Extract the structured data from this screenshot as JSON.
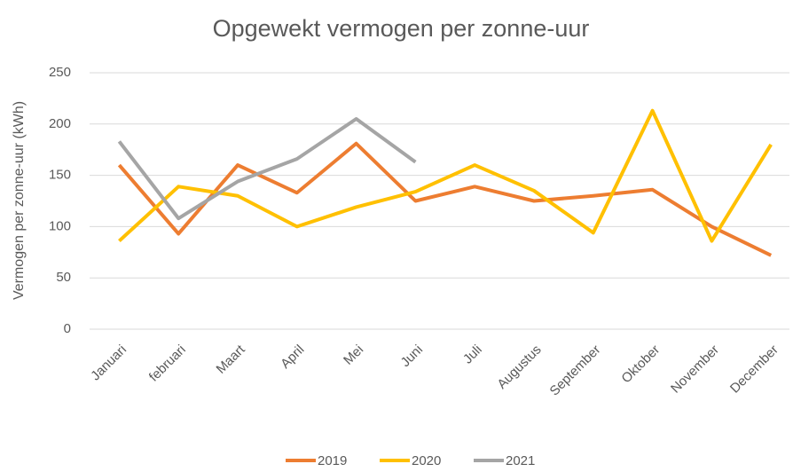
{
  "chart_data": {
    "type": "line",
    "title": "Opgewekt vermogen per zonne-uur",
    "y_label": "Vermogen per zonne-uur (kWh)",
    "categories": [
      "Januari",
      "februari",
      "Maart",
      "April",
      "Mei",
      "Juni",
      "Juli",
      "Augustus",
      "September",
      "Oktober",
      "November",
      "December"
    ],
    "series": [
      {
        "name": "2019",
        "color": "#ed7d31",
        "values": [
          160,
          93,
          160,
          133,
          181,
          125,
          139,
          125,
          130,
          136,
          100,
          72
        ]
      },
      {
        "name": "2020",
        "color": "#ffc000",
        "values": [
          86,
          139,
          130,
          100,
          119,
          134,
          160,
          135,
          94,
          213,
          86,
          180
        ]
      },
      {
        "name": "2021",
        "color": "#a5a5a5",
        "values": [
          183,
          108,
          144,
          166,
          205,
          163,
          null,
          null,
          null,
          null,
          null,
          null
        ]
      }
    ],
    "ylim": [
      0,
      250
    ],
    "yticks": [
      0,
      50,
      100,
      150,
      200,
      250
    ],
    "grid": true,
    "legend": "bottom"
  }
}
